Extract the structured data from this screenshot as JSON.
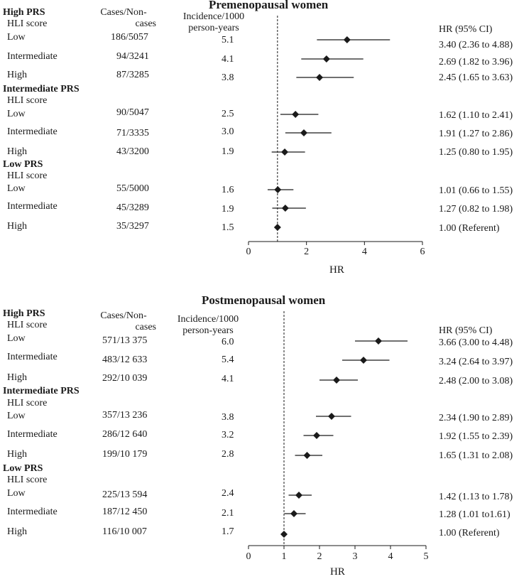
{
  "chart_data": [
    {
      "type": "forest",
      "title": "Premenopausal women",
      "xlabel": "HR",
      "xlim": [
        0,
        6
      ],
      "xticks": [
        0,
        2,
        4,
        6
      ],
      "reference_line": 1,
      "col_cases_header": "Cases/Non-cases",
      "col_cases_header_l1": "Cases/Non-",
      "col_cases_header_l2": "cases",
      "col_inc_header_l1": "Incidence/1000",
      "col_inc_header_l2": "person-years",
      "col_hr_header": "HR (95% CI)",
      "groups": [
        {
          "label": "High PRS",
          "sublabel": "HLI score",
          "rows": [
            {
              "label": "Low",
              "cases": "186/5057",
              "incidence": "5.1",
              "hr": 3.4,
              "lo": 2.36,
              "hi": 4.88,
              "hr_text": "3.40 (2.36 to 4.88)"
            },
            {
              "label": "Intermediate",
              "cases": "94/3241",
              "incidence": "4.1",
              "hr": 2.69,
              "lo": 1.82,
              "hi": 3.96,
              "hr_text": "2.69 (1.82 to 3.96)"
            },
            {
              "label": "High",
              "cases": "87/3285",
              "incidence": "3.8",
              "hr": 2.45,
              "lo": 1.65,
              "hi": 3.63,
              "hr_text": "2.45 (1.65 to 3.63)"
            }
          ]
        },
        {
          "label": "Intermediate PRS",
          "sublabel": "HLI score",
          "rows": [
            {
              "label": "Low",
              "cases": "90/5047",
              "incidence": "2.5",
              "hr": 1.62,
              "lo": 1.1,
              "hi": 2.41,
              "hr_text": "1.62 (1.10 to 2.41)"
            },
            {
              "label": "Intermediate",
              "cases": "71/3335",
              "incidence": "3.0",
              "hr": 1.91,
              "lo": 1.27,
              "hi": 2.86,
              "hr_text": "1.91 (1.27 to 2.86)"
            },
            {
              "label": "High",
              "cases": "43/3200",
              "incidence": "1.9",
              "hr": 1.25,
              "lo": 0.8,
              "hi": 1.95,
              "hr_text": "1.25 (0.80 to 1.95)"
            }
          ]
        },
        {
          "label": "Low PRS",
          "sublabel": "HLI score",
          "rows": [
            {
              "label": "Low",
              "cases": "55/5000",
              "incidence": "1.6",
              "hr": 1.01,
              "lo": 0.66,
              "hi": 1.55,
              "hr_text": "1.01 (0.66 to 1.55)"
            },
            {
              "label": "Intermediate",
              "cases": "45/3289",
              "incidence": "1.9",
              "hr": 1.27,
              "lo": 0.82,
              "hi": 1.98,
              "hr_text": "1.27 (0.82 to 1.98)"
            },
            {
              "label": "High",
              "cases": "35/3297",
              "incidence": "1.5",
              "hr": 1.0,
              "lo": 1.0,
              "hi": 1.0,
              "hr_text": "1.00 (Referent)"
            }
          ]
        }
      ]
    },
    {
      "type": "forest",
      "title": "Postmenopausal women",
      "xlabel": "HR",
      "xlim": [
        0,
        5
      ],
      "xticks": [
        0,
        1,
        2,
        3,
        4,
        5
      ],
      "reference_line": 1,
      "col_cases_header": "Cases/Non-cases",
      "col_cases_header_l1": "Cases/Non-",
      "col_cases_header_l2": "cases",
      "col_inc_header_l1": "Incidence/1000",
      "col_inc_header_l2": "person-years",
      "col_hr_header": "HR (95% CI)",
      "groups": [
        {
          "label": "High PRS",
          "sublabel": "HLI score",
          "rows": [
            {
              "label": "Low",
              "cases": "571/13 375",
              "incidence": "6.0",
              "hr": 3.66,
              "lo": 3.0,
              "hi": 4.48,
              "hr_text": "3.66 (3.00 to 4.48)"
            },
            {
              "label": "Intermediate",
              "cases": "483/12 633",
              "incidence": "5.4",
              "hr": 3.24,
              "lo": 2.64,
              "hi": 3.97,
              "hr_text": "3.24 (2.64 to 3.97)"
            },
            {
              "label": "High",
              "cases": "292/10 039",
              "incidence": "4.1",
              "hr": 2.48,
              "lo": 2.0,
              "hi": 3.08,
              "hr_text": "2.48 (2.00 to 3.08)"
            }
          ]
        },
        {
          "label": "Intermediate PRS",
          "sublabel": "HLI score",
          "rows": [
            {
              "label": "Low",
              "cases": "357/13 236",
              "incidence": "3.8",
              "hr": 2.34,
              "lo": 1.9,
              "hi": 2.89,
              "hr_text": "2.34 (1.90 to 2.89)"
            },
            {
              "label": "Intermediate",
              "cases": "286/12 640",
              "incidence": "3.2",
              "hr": 1.92,
              "lo": 1.55,
              "hi": 2.39,
              "hr_text": "1.92 (1.55 to 2.39)"
            },
            {
              "label": "High",
              "cases": "199/10 179",
              "incidence": "2.8",
              "hr": 1.65,
              "lo": 1.31,
              "hi": 2.08,
              "hr_text": "1.65 (1.31 to 2.08)"
            }
          ]
        },
        {
          "label": "Low PRS",
          "sublabel": "HLI score",
          "rows": [
            {
              "label": "Low",
              "cases": "225/13 594",
              "incidence": "2.4",
              "hr": 1.42,
              "lo": 1.13,
              "hi": 1.78,
              "hr_text": "1.42 (1.13 to 1.78)"
            },
            {
              "label": "Intermediate",
              "cases": "187/12 450",
              "incidence": "2.1",
              "hr": 1.28,
              "lo": 1.01,
              "hi": 1.61,
              "hr_text": "1.28 (1.01 to1.61)"
            },
            {
              "label": "High",
              "cases": "116/10 007",
              "incidence": "1.7",
              "hr": 1.0,
              "lo": 1.0,
              "hi": 1.0,
              "hr_text": "1.00 (Referent)"
            }
          ]
        }
      ]
    }
  ]
}
